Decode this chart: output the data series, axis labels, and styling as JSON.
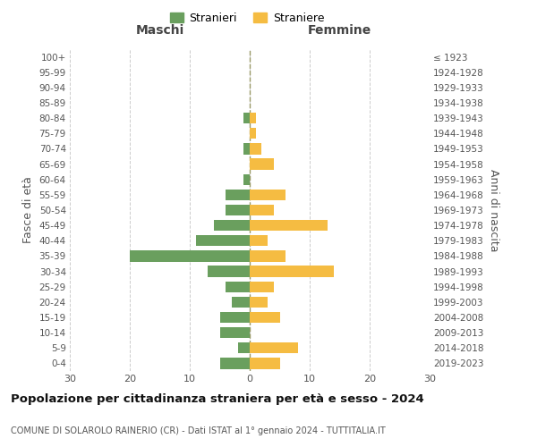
{
  "age_groups": [
    "0-4",
    "5-9",
    "10-14",
    "15-19",
    "20-24",
    "25-29",
    "30-34",
    "35-39",
    "40-44",
    "45-49",
    "50-54",
    "55-59",
    "60-64",
    "65-69",
    "70-74",
    "75-79",
    "80-84",
    "85-89",
    "90-94",
    "95-99",
    "100+"
  ],
  "birth_years": [
    "2019-2023",
    "2014-2018",
    "2009-2013",
    "2004-2008",
    "1999-2003",
    "1994-1998",
    "1989-1993",
    "1984-1988",
    "1979-1983",
    "1974-1978",
    "1969-1973",
    "1964-1968",
    "1959-1963",
    "1954-1958",
    "1949-1953",
    "1944-1948",
    "1939-1943",
    "1934-1938",
    "1929-1933",
    "1924-1928",
    "≤ 1923"
  ],
  "maschi": [
    5,
    2,
    5,
    5,
    3,
    4,
    7,
    20,
    9,
    6,
    4,
    4,
    1,
    0,
    1,
    0,
    1,
    0,
    0,
    0,
    0
  ],
  "femmine": [
    5,
    8,
    0,
    5,
    3,
    4,
    14,
    6,
    3,
    13,
    4,
    6,
    0,
    4,
    2,
    1,
    1,
    0,
    0,
    0,
    0
  ],
  "maschi_color": "#6a9f5e",
  "femmine_color": "#f5bc42",
  "title": "Popolazione per cittadinanza straniera per età e sesso - 2024",
  "subtitle": "COMUNE DI SOLAROLO RAINERIO (CR) - Dati ISTAT al 1° gennaio 2024 - TUTTITALIA.IT",
  "ylabel_left": "Fasce di età",
  "ylabel_right": "Anni di nascita",
  "header_left": "Maschi",
  "header_right": "Femmine",
  "legend_stranieri": "Stranieri",
  "legend_straniere": "Straniere",
  "xlim": 30,
  "background_color": "#ffffff",
  "grid_color": "#cccccc"
}
